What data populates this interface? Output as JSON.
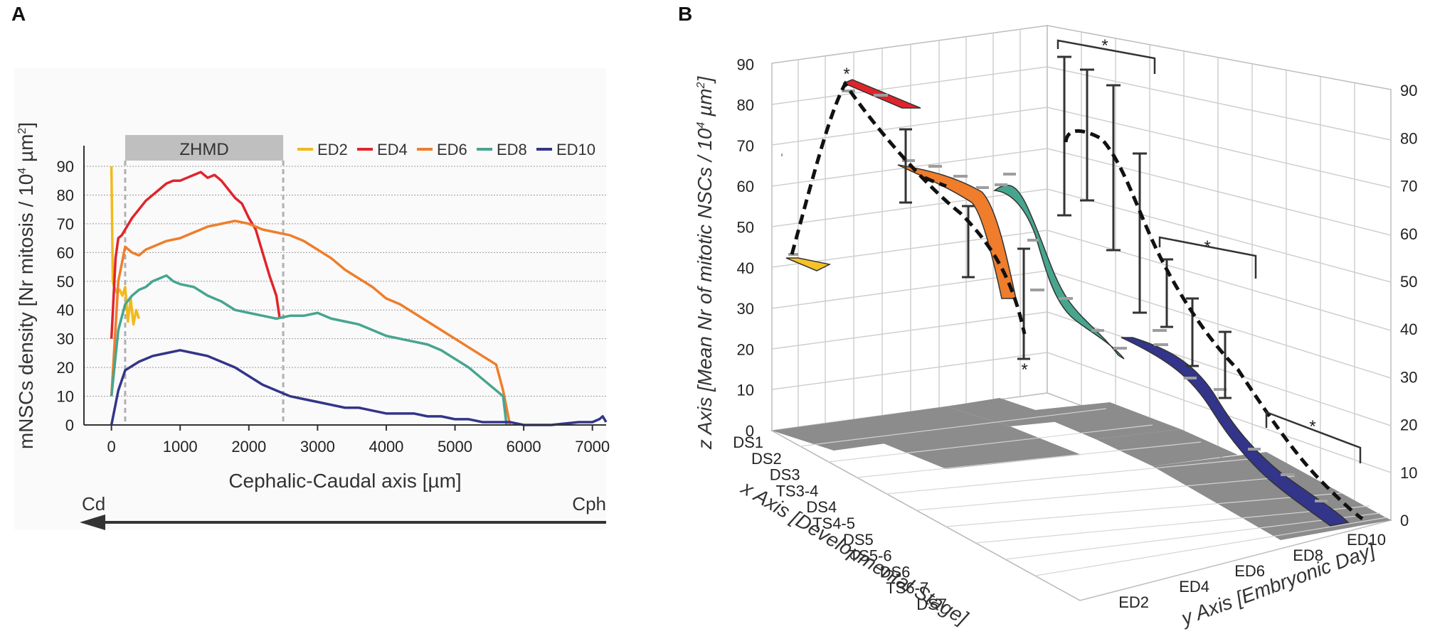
{
  "panels": {
    "a": {
      "letter": "A"
    },
    "b": {
      "letter": "B"
    }
  },
  "chart_data": [
    {
      "type": "line",
      "panel": "A",
      "title": "",
      "xlabel": "Cephalic-Caudal axis [µm]",
      "ylabel": "mNSCs density [Nr mitosis / 10",
      "ylabel_sup1": "4",
      "ylabel_mid": " µm",
      "ylabel_sup2": "2",
      "ylabel_end": "]",
      "xlim": [
        -400,
        7200
      ],
      "ylim": [
        0,
        95
      ],
      "xticks": [
        "0",
        "1000",
        "2000",
        "3000",
        "4000",
        "5000",
        "6000",
        "7000"
      ],
      "xtick_values": [
        0,
        1000,
        2000,
        3000,
        4000,
        5000,
        6000,
        7000
      ],
      "yticks": [
        "0",
        "10",
        "20",
        "30",
        "40",
        "50",
        "60",
        "70",
        "80",
        "90"
      ],
      "ytick_values": [
        0,
        10,
        20,
        30,
        40,
        50,
        60,
        70,
        80,
        90
      ],
      "grid": "horizontal",
      "region": {
        "label": "ZHMD",
        "from": 200,
        "to": 2500
      },
      "direction": {
        "left": "Cd",
        "right": "Cph"
      },
      "series": [
        {
          "name": "ED2",
          "color": "#f2b91c",
          "x": [
            0,
            20,
            40,
            80,
            120,
            160,
            200,
            240,
            280,
            320,
            360,
            400
          ],
          "y": [
            90,
            50,
            48,
            46,
            47,
            45,
            48,
            36,
            44,
            35,
            40,
            37
          ]
        },
        {
          "name": "ED4",
          "color": "#e0242b",
          "x": [
            0,
            60,
            100,
            150,
            200,
            300,
            400,
            500,
            600,
            700,
            800,
            900,
            1000,
            1100,
            1200,
            1300,
            1400,
            1500,
            1600,
            1700,
            1800,
            1900,
            2000,
            2100,
            2200,
            2300,
            2400,
            2450
          ],
          "y": [
            30,
            58,
            65,
            66,
            68,
            72,
            75,
            78,
            80,
            82,
            84,
            85,
            85,
            86,
            87,
            88,
            86,
            87,
            85,
            82,
            79,
            77,
            72,
            68,
            60,
            52,
            45,
            37
          ]
        },
        {
          "name": "ED6",
          "color": "#ef7d2b",
          "x": [
            0,
            100,
            200,
            300,
            400,
            500,
            600,
            800,
            1000,
            1200,
            1400,
            1600,
            1800,
            2000,
            2200,
            2400,
            2600,
            2800,
            3000,
            3200,
            3400,
            3600,
            3800,
            4000,
            4200,
            4400,
            4600,
            4800,
            5000,
            5200,
            5400,
            5600,
            5700,
            5800
          ],
          "y": [
            10,
            50,
            62,
            60,
            59,
            61,
            62,
            64,
            65,
            67,
            69,
            70,
            71,
            70,
            68,
            67,
            66,
            64,
            61,
            58,
            54,
            51,
            48,
            44,
            42,
            39,
            36,
            33,
            30,
            27,
            24,
            21,
            12,
            0
          ]
        },
        {
          "name": "ED8",
          "color": "#47a58e",
          "x": [
            0,
            100,
            200,
            300,
            400,
            500,
            600,
            700,
            800,
            900,
            1000,
            1200,
            1400,
            1600,
            1800,
            2000,
            2200,
            2400,
            2600,
            2800,
            3000,
            3200,
            3400,
            3600,
            3800,
            4000,
            4200,
            4400,
            4600,
            4800,
            5000,
            5200,
            5400,
            5600,
            5700,
            5750
          ],
          "y": [
            10,
            33,
            42,
            45,
            47,
            48,
            50,
            51,
            52,
            50,
            49,
            48,
            45,
            43,
            40,
            39,
            38,
            37,
            38,
            38,
            39,
            37,
            36,
            35,
            33,
            31,
            30,
            29,
            28,
            26,
            23,
            20,
            16,
            12,
            10,
            0
          ]
        },
        {
          "name": "ED10",
          "color": "#33358a",
          "x": [
            0,
            100,
            200,
            400,
            600,
            800,
            1000,
            1200,
            1400,
            1600,
            1800,
            2000,
            2200,
            2400,
            2600,
            2800,
            3000,
            3200,
            3400,
            3600,
            3800,
            4000,
            4200,
            4400,
            4600,
            4800,
            5000,
            5200,
            5400,
            5600,
            5800,
            6000,
            6400,
            6800,
            7000,
            7100,
            7150,
            7200
          ],
          "y": [
            0,
            12,
            19,
            22,
            24,
            25,
            26,
            25,
            24,
            22,
            20,
            17,
            14,
            12,
            10,
            9,
            8,
            7,
            6,
            6,
            5,
            4,
            4,
            4,
            3,
            3,
            2,
            2,
            1,
            1,
            1,
            0,
            0,
            1,
            1,
            2,
            3,
            1
          ]
        }
      ]
    },
    {
      "type": "line",
      "panel": "B",
      "title": "",
      "projection": "3d",
      "xlabel": "x Axis [Developmental Stage]",
      "ylabel": "y Axis [Embryonic Day]",
      "zlabel": "z Axis [Mean Nr of mitotic NSCs / 10",
      "zlabel_sup1": "4",
      "zlabel_mid": " µm",
      "zlabel_sup2": "2",
      "zlabel_end": "]",
      "x_categories": [
        "DS1",
        "DS2",
        "DS3",
        "TS3-4",
        "DS4",
        "TS4-5",
        "DS5",
        "TS5-6",
        "DS6",
        "TS6-7",
        "DS7"
      ],
      "y_categories": [
        "ED2",
        "ED4",
        "ED6",
        "ED8",
        "ED10"
      ],
      "zlim": [
        0,
        90
      ],
      "zticks_left": [
        "0",
        "10",
        "20",
        "30",
        "40",
        "50",
        "60",
        "70",
        "80",
        "90"
      ],
      "zticks_right": [
        "0",
        "10",
        "20",
        "30",
        "40",
        "50",
        "60",
        "70",
        "80",
        "90"
      ],
      "star": "*",
      "series": [
        {
          "name": "ED2",
          "color": "#f5c227",
          "ribbon": "short segment at about 42"
        },
        {
          "name": "ED4",
          "color": "#e0242b",
          "ribbon": "short segment near 85-78"
        },
        {
          "name": "ED6",
          "color": "#ef7d2b",
          "ribbon": "descending from about 65 to 30"
        },
        {
          "name": "ED8",
          "color": "#47a58e",
          "ribbon": "descending from about 65 to 18"
        },
        {
          "name": "ED10",
          "color": "#33358a",
          "ribbon": "descending from about 25 to 0"
        }
      ]
    }
  ]
}
